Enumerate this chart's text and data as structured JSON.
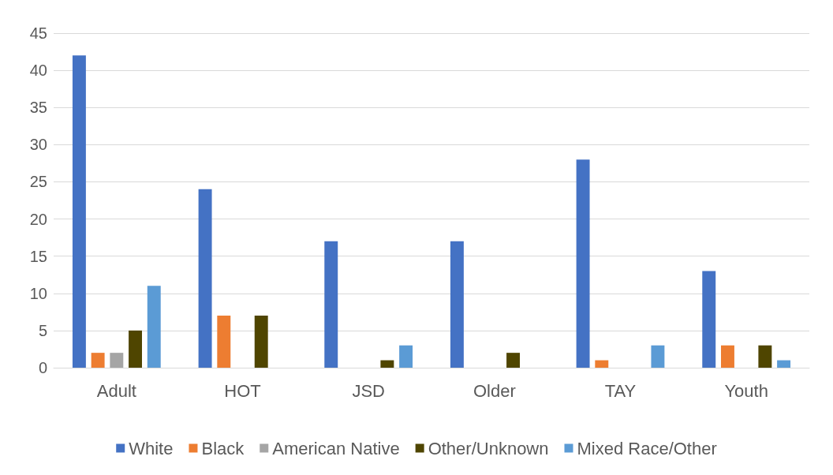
{
  "chart_data": {
    "type": "bar",
    "categories": [
      "Adult",
      "HOT",
      "JSD",
      "Older",
      "TAY",
      "Youth"
    ],
    "series": [
      {
        "name": "White",
        "color": "#4472c4",
        "values": [
          42,
          24,
          17,
          17,
          28,
          13
        ]
      },
      {
        "name": "Black",
        "color": "#ed7d31",
        "values": [
          2,
          7,
          0,
          0,
          1,
          3
        ]
      },
      {
        "name": "American Native",
        "color": "#a5a5a5",
        "values": [
          2,
          0,
          0,
          0,
          0,
          0
        ]
      },
      {
        "name": "Other/Unknown",
        "color": "#4f4500",
        "values": [
          5,
          7,
          1,
          2,
          0,
          3
        ]
      },
      {
        "name": "Mixed Race/Other",
        "color": "#5b9bd5",
        "values": [
          11,
          0,
          3,
          0,
          3,
          1
        ]
      }
    ],
    "ylim": [
      0,
      45
    ],
    "yticks": [
      0,
      5,
      10,
      15,
      20,
      25,
      30,
      35,
      40,
      45
    ],
    "grid": "y",
    "legend": "bottom"
  }
}
